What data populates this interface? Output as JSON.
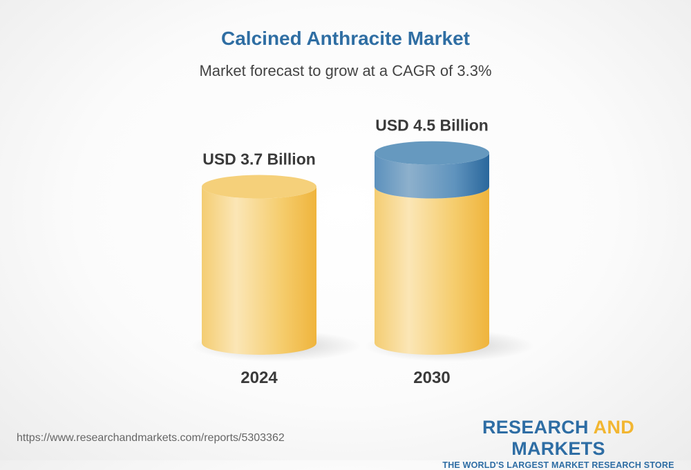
{
  "chart_data": {
    "type": "bar",
    "style": "3d-cylinder",
    "title": "Calcined Anthracite Market",
    "subtitle": "Market forecast to grow at a CAGR of 3.3%",
    "categories": [
      "2024",
      "2030"
    ],
    "values": [
      3.7,
      4.5
    ],
    "data_labels": [
      "USD 3.7 Billion",
      "USD 4.5 Billion"
    ],
    "unit": "USD Billion",
    "colors": {
      "base": "#f3c35a",
      "growth": "#3f7fb0"
    }
  },
  "footer": {
    "url": "https://www.researchandmarkets.com/reports/5303362",
    "logo_part1": "RESEARCH ",
    "logo_part2": "AND",
    "logo_part3": " MARKETS",
    "logo_tagline": "THE WORLD'S LARGEST MARKET RESEARCH STORE"
  }
}
